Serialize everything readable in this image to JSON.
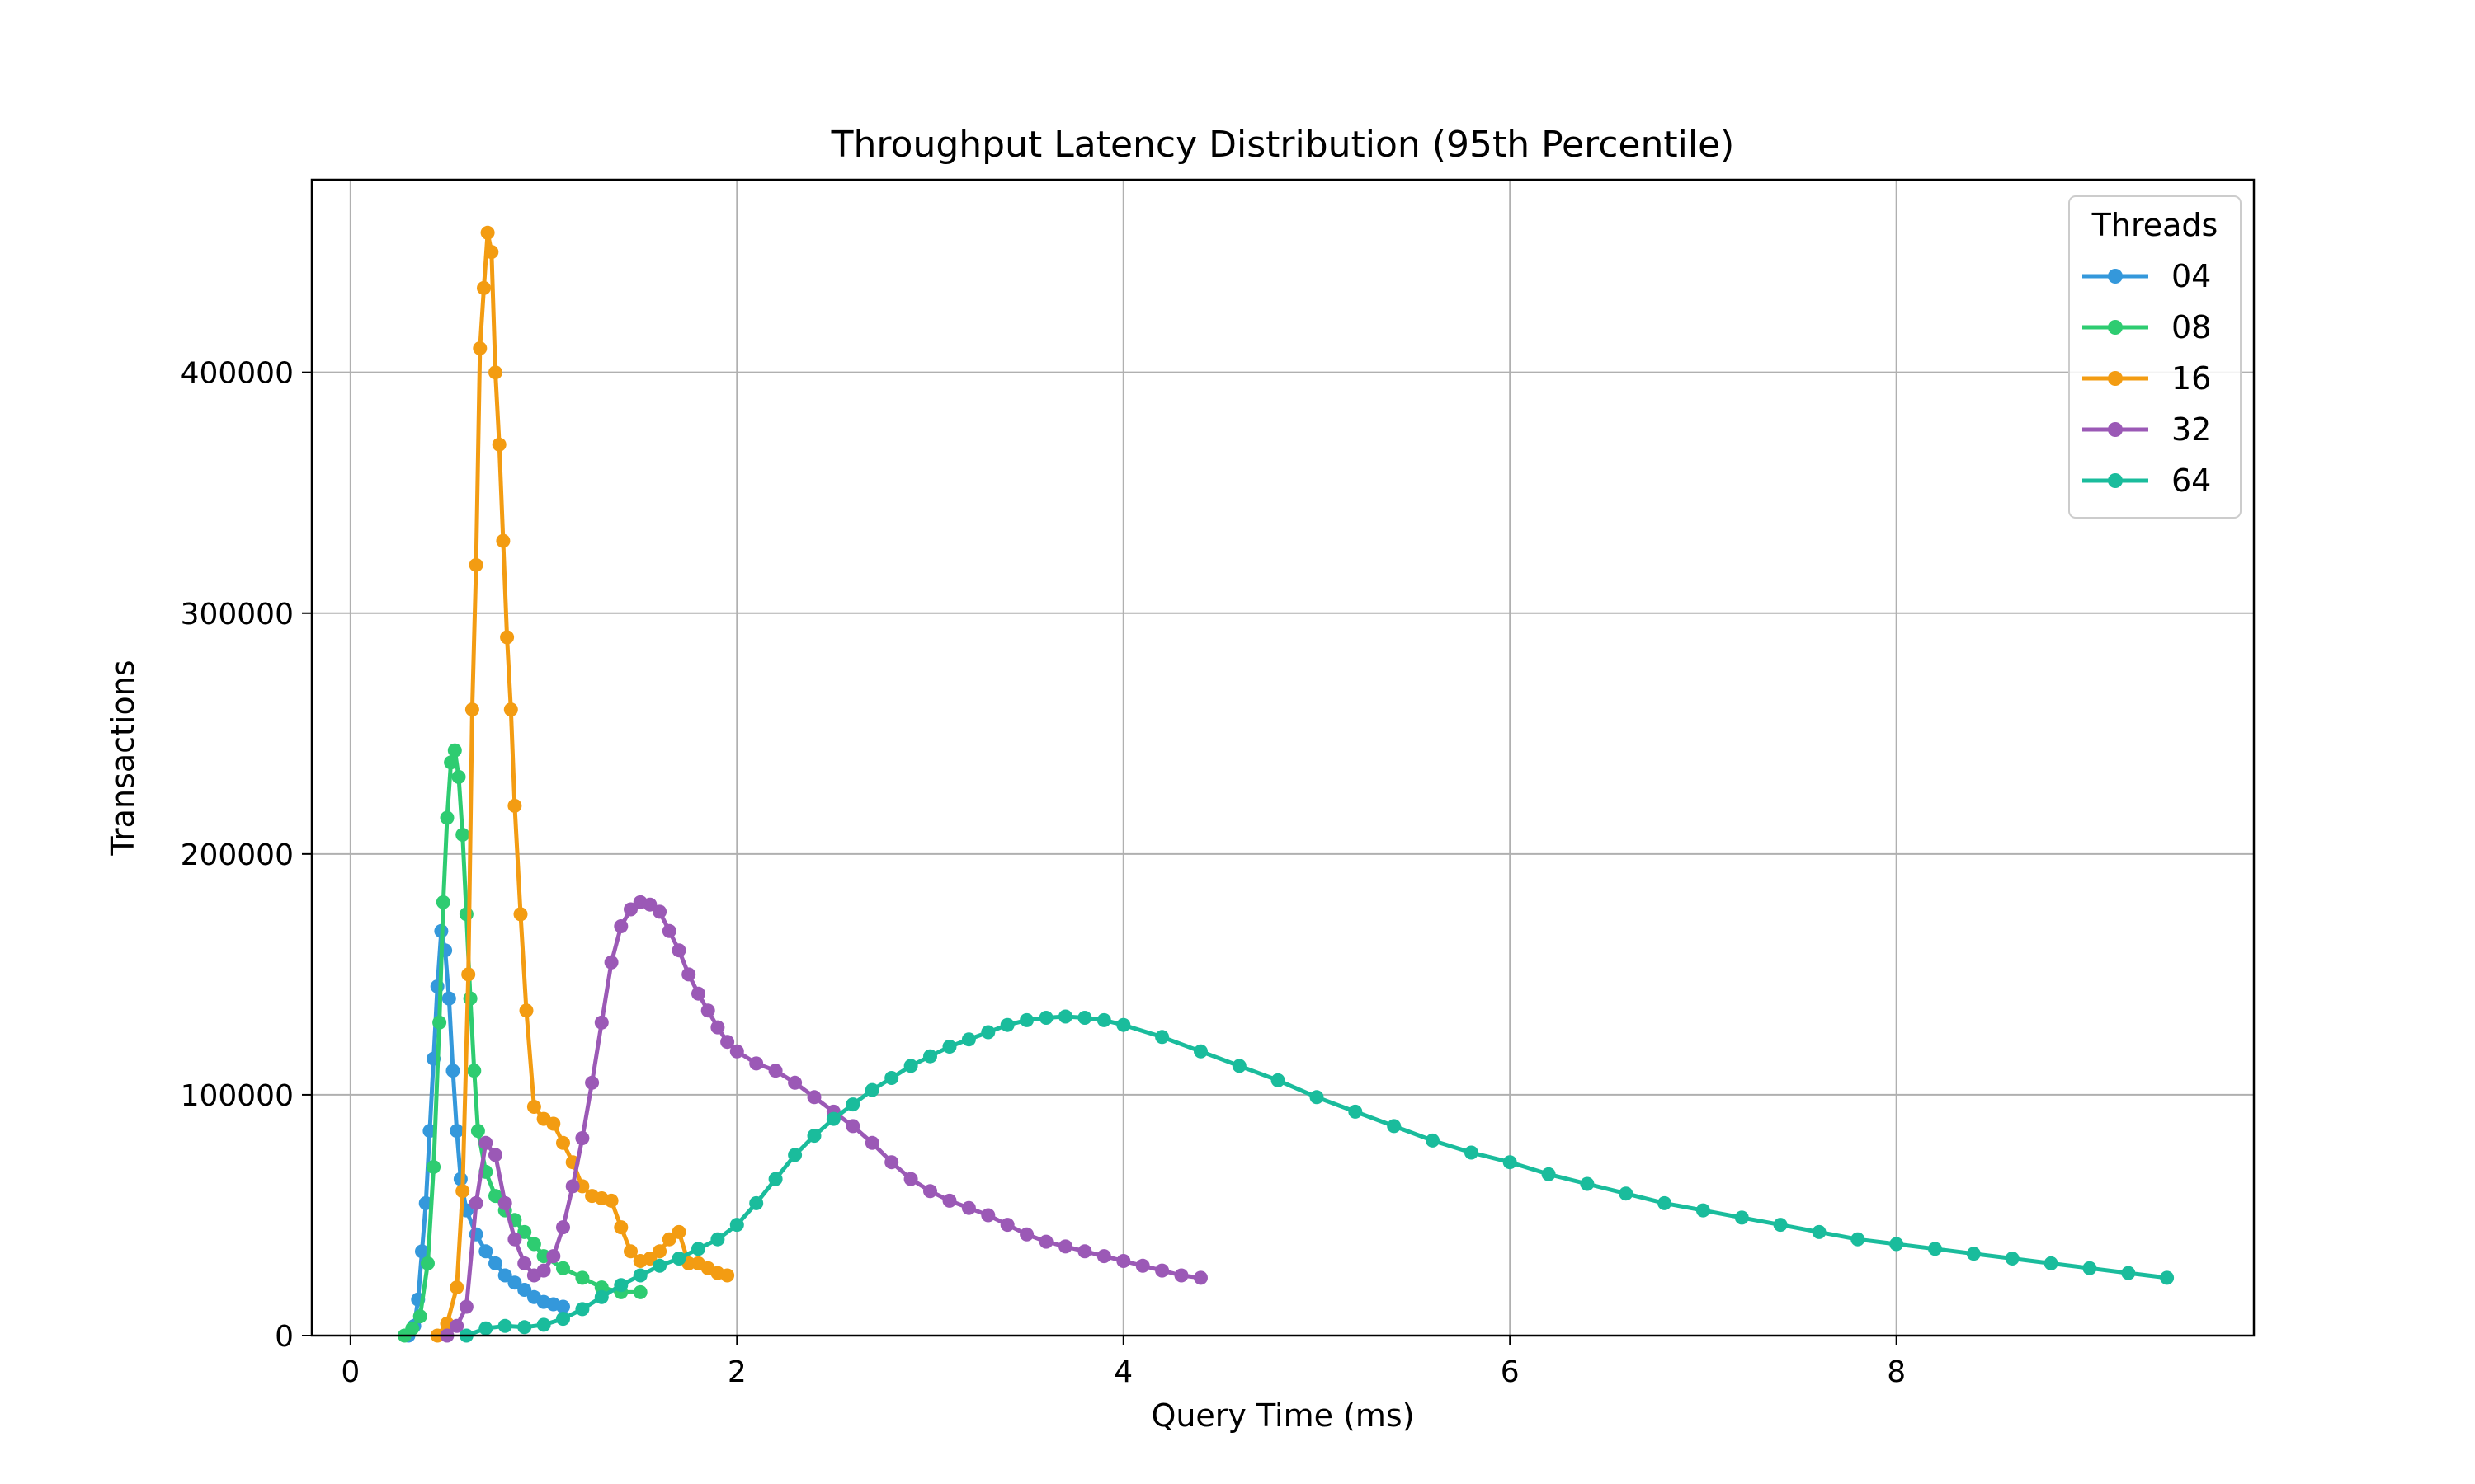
{
  "chart_data": {
    "type": "line",
    "title": "Throughput Latency Distribution (95th Percentile)",
    "xlabel": "Query Time (ms)",
    "ylabel": "Transactions",
    "xlim": [
      -0.2,
      9.85
    ],
    "ylim": [
      0,
      480000
    ],
    "xticks": [
      0,
      2,
      4,
      6,
      8
    ],
    "yticks": [
      0,
      100000,
      200000,
      300000,
      400000
    ],
    "grid": true,
    "legend": {
      "title": "Threads",
      "placement": "top-right"
    },
    "series": [
      {
        "name": "04",
        "color": "#3498db",
        "points": [
          [
            0.3,
            0
          ],
          [
            0.33,
            4000
          ],
          [
            0.35,
            15000
          ],
          [
            0.37,
            35000
          ],
          [
            0.39,
            55000
          ],
          [
            0.41,
            85000
          ],
          [
            0.43,
            115000
          ],
          [
            0.45,
            145000
          ],
          [
            0.47,
            168000
          ],
          [
            0.49,
            160000
          ],
          [
            0.51,
            140000
          ],
          [
            0.53,
            110000
          ],
          [
            0.55,
            85000
          ],
          [
            0.57,
            65000
          ],
          [
            0.6,
            52000
          ],
          [
            0.65,
            42000
          ],
          [
            0.7,
            35000
          ],
          [
            0.75,
            30000
          ],
          [
            0.8,
            25000
          ],
          [
            0.85,
            22000
          ],
          [
            0.9,
            19000
          ],
          [
            0.95,
            16000
          ],
          [
            1.0,
            14000
          ],
          [
            1.05,
            13000
          ],
          [
            1.1,
            12000
          ]
        ]
      },
      {
        "name": "08",
        "color": "#2ecc71",
        "points": [
          [
            0.28,
            0
          ],
          [
            0.32,
            3000
          ],
          [
            0.36,
            8000
          ],
          [
            0.4,
            30000
          ],
          [
            0.43,
            70000
          ],
          [
            0.46,
            130000
          ],
          [
            0.48,
            180000
          ],
          [
            0.5,
            215000
          ],
          [
            0.52,
            238000
          ],
          [
            0.54,
            243000
          ],
          [
            0.56,
            232000
          ],
          [
            0.58,
            208000
          ],
          [
            0.6,
            175000
          ],
          [
            0.62,
            140000
          ],
          [
            0.64,
            110000
          ],
          [
            0.66,
            85000
          ],
          [
            0.7,
            68000
          ],
          [
            0.75,
            58000
          ],
          [
            0.8,
            52000
          ],
          [
            0.85,
            48000
          ],
          [
            0.9,
            43000
          ],
          [
            0.95,
            38000
          ],
          [
            1.0,
            33000
          ],
          [
            1.1,
            28000
          ],
          [
            1.2,
            24000
          ],
          [
            1.3,
            20000
          ],
          [
            1.4,
            18000
          ],
          [
            1.5,
            18000
          ]
        ]
      },
      {
        "name": "16",
        "color": "#f39c12",
        "points": [
          [
            0.45,
            0
          ],
          [
            0.5,
            5000
          ],
          [
            0.55,
            20000
          ],
          [
            0.58,
            60000
          ],
          [
            0.61,
            150000
          ],
          [
            0.63,
            260000
          ],
          [
            0.65,
            320000
          ],
          [
            0.67,
            410000
          ],
          [
            0.69,
            435000
          ],
          [
            0.71,
            458000
          ],
          [
            0.73,
            450000
          ],
          [
            0.75,
            400000
          ],
          [
            0.77,
            370000
          ],
          [
            0.79,
            330000
          ],
          [
            0.81,
            290000
          ],
          [
            0.83,
            260000
          ],
          [
            0.85,
            220000
          ],
          [
            0.88,
            175000
          ],
          [
            0.91,
            135000
          ],
          [
            0.95,
            95000
          ],
          [
            1.0,
            90000
          ],
          [
            1.05,
            88000
          ],
          [
            1.1,
            80000
          ],
          [
            1.15,
            72000
          ],
          [
            1.2,
            62000
          ],
          [
            1.25,
            58000
          ],
          [
            1.3,
            57000
          ],
          [
            1.35,
            56000
          ],
          [
            1.4,
            45000
          ],
          [
            1.45,
            35000
          ],
          [
            1.5,
            31000
          ],
          [
            1.55,
            32000
          ],
          [
            1.6,
            35000
          ],
          [
            1.65,
            40000
          ],
          [
            1.7,
            43000
          ],
          [
            1.75,
            30000
          ],
          [
            1.8,
            30000
          ],
          [
            1.85,
            28000
          ],
          [
            1.9,
            26000
          ],
          [
            1.95,
            25000
          ]
        ]
      },
      {
        "name": "32",
        "color": "#9b59b6",
        "points": [
          [
            0.5,
            0
          ],
          [
            0.55,
            4000
          ],
          [
            0.6,
            12000
          ],
          [
            0.65,
            55000
          ],
          [
            0.7,
            80000
          ],
          [
            0.75,
            75000
          ],
          [
            0.8,
            55000
          ],
          [
            0.85,
            40000
          ],
          [
            0.9,
            30000
          ],
          [
            0.95,
            25000
          ],
          [
            1.0,
            27000
          ],
          [
            1.05,
            33000
          ],
          [
            1.1,
            45000
          ],
          [
            1.15,
            62000
          ],
          [
            1.2,
            82000
          ],
          [
            1.25,
            105000
          ],
          [
            1.3,
            130000
          ],
          [
            1.35,
            155000
          ],
          [
            1.4,
            170000
          ],
          [
            1.45,
            177000
          ],
          [
            1.5,
            180000
          ],
          [
            1.55,
            179000
          ],
          [
            1.6,
            176000
          ],
          [
            1.65,
            168000
          ],
          [
            1.7,
            160000
          ],
          [
            1.75,
            150000
          ],
          [
            1.8,
            142000
          ],
          [
            1.85,
            135000
          ],
          [
            1.9,
            128000
          ],
          [
            1.95,
            122000
          ],
          [
            2.0,
            118000
          ],
          [
            2.1,
            113000
          ],
          [
            2.2,
            110000
          ],
          [
            2.3,
            105000
          ],
          [
            2.4,
            99000
          ],
          [
            2.5,
            93000
          ],
          [
            2.6,
            87000
          ],
          [
            2.7,
            80000
          ],
          [
            2.8,
            72000
          ],
          [
            2.9,
            65000
          ],
          [
            3.0,
            60000
          ],
          [
            3.1,
            56000
          ],
          [
            3.2,
            53000
          ],
          [
            3.3,
            50000
          ],
          [
            3.4,
            46000
          ],
          [
            3.5,
            42000
          ],
          [
            3.6,
            39000
          ],
          [
            3.7,
            37000
          ],
          [
            3.8,
            35000
          ],
          [
            3.9,
            33000
          ],
          [
            4.0,
            31000
          ],
          [
            4.1,
            29000
          ],
          [
            4.2,
            27000
          ],
          [
            4.3,
            25000
          ],
          [
            4.4,
            24000
          ]
        ]
      },
      {
        "name": "64",
        "color": "#1abc9c",
        "points": [
          [
            0.6,
            0
          ],
          [
            0.7,
            3000
          ],
          [
            0.8,
            4000
          ],
          [
            0.9,
            3500
          ],
          [
            1.0,
            4500
          ],
          [
            1.1,
            7000
          ],
          [
            1.2,
            11000
          ],
          [
            1.3,
            16000
          ],
          [
            1.4,
            21000
          ],
          [
            1.5,
            25000
          ],
          [
            1.6,
            29000
          ],
          [
            1.7,
            32000
          ],
          [
            1.8,
            36000
          ],
          [
            1.9,
            40000
          ],
          [
            2.0,
            46000
          ],
          [
            2.1,
            55000
          ],
          [
            2.2,
            65000
          ],
          [
            2.3,
            75000
          ],
          [
            2.4,
            83000
          ],
          [
            2.5,
            90000
          ],
          [
            2.6,
            96000
          ],
          [
            2.7,
            102000
          ],
          [
            2.8,
            107000
          ],
          [
            2.9,
            112000
          ],
          [
            3.0,
            116000
          ],
          [
            3.1,
            120000
          ],
          [
            3.2,
            123000
          ],
          [
            3.3,
            126000
          ],
          [
            3.4,
            129000
          ],
          [
            3.5,
            131000
          ],
          [
            3.6,
            132000
          ],
          [
            3.7,
            132500
          ],
          [
            3.8,
            132000
          ],
          [
            3.9,
            131000
          ],
          [
            4.0,
            129000
          ],
          [
            4.2,
            124000
          ],
          [
            4.4,
            118000
          ],
          [
            4.6,
            112000
          ],
          [
            4.8,
            106000
          ],
          [
            5.0,
            99000
          ],
          [
            5.2,
            93000
          ],
          [
            5.4,
            87000
          ],
          [
            5.6,
            81000
          ],
          [
            5.8,
            76000
          ],
          [
            6.0,
            72000
          ],
          [
            6.2,
            67000
          ],
          [
            6.4,
            63000
          ],
          [
            6.6,
            59000
          ],
          [
            6.8,
            55000
          ],
          [
            7.0,
            52000
          ],
          [
            7.2,
            49000
          ],
          [
            7.4,
            46000
          ],
          [
            7.6,
            43000
          ],
          [
            7.8,
            40000
          ],
          [
            8.0,
            38000
          ],
          [
            8.2,
            36000
          ],
          [
            8.4,
            34000
          ],
          [
            8.6,
            32000
          ],
          [
            8.8,
            30000
          ],
          [
            9.0,
            28000
          ],
          [
            9.2,
            26000
          ],
          [
            9.4,
            24000
          ]
        ]
      }
    ]
  }
}
